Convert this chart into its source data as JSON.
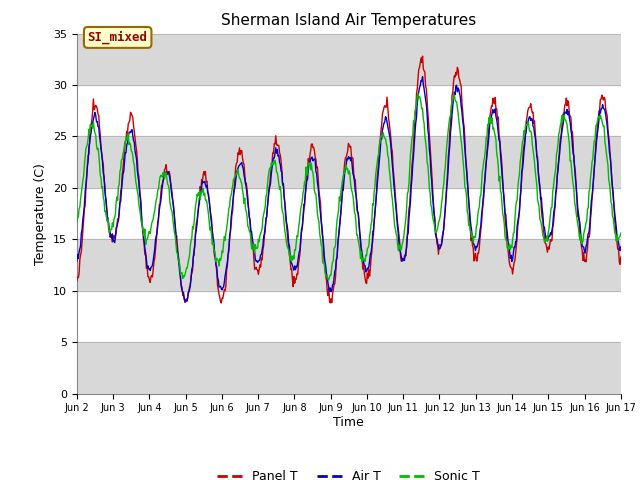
{
  "title": "Sherman Island Air Temperatures",
  "xlabel": "Time",
  "ylabel": "Temperature (C)",
  "ylim": [
    0,
    35
  ],
  "yticks": [
    0,
    5,
    10,
    15,
    20,
    25,
    30,
    35
  ],
  "label_text": "SI_mixed",
  "panel_color": "#cc0000",
  "air_color": "#0000cc",
  "sonic_color": "#00bb00",
  "bg_color": "#ffffff",
  "band_color": "#d8d8d8",
  "legend_labels": [
    "Panel T",
    "Air T",
    "Sonic T"
  ],
  "x_tick_labels": [
    "Jun 2",
    "Jun 3",
    "Jun 4",
    "Jun 5",
    "Jun 6",
    "Jun 7",
    "Jun 8",
    "Jun 9",
    "Jun 10",
    "Jun 11",
    "Jun 12",
    "Jun 13",
    "Jun 14",
    "Jun 15",
    "Jun 16",
    "Jun 17"
  ],
  "n_days": 15,
  "pts_per_day": 48,
  "panel_base": [
    19,
    22,
    18,
    14,
    16,
    18,
    18,
    16,
    18,
    22,
    24,
    21,
    20,
    21,
    21,
    21
  ],
  "panel_amp": [
    8,
    7,
    7,
    5,
    7,
    6,
    7,
    7,
    7,
    9,
    10,
    8,
    8,
    7,
    8,
    8
  ],
  "air_base": [
    20,
    21,
    18,
    14,
    16,
    18,
    18,
    16,
    18,
    21,
    23,
    21,
    20,
    21,
    21,
    21
  ],
  "air_amp": [
    7,
    6,
    6,
    5,
    6,
    5,
    6,
    6,
    6,
    8,
    9,
    7,
    7,
    6,
    7,
    7
  ],
  "sonic_base": [
    21,
    21,
    19,
    15,
    17,
    18,
    18,
    16,
    18,
    21,
    23,
    21,
    20,
    21,
    21,
    21
  ],
  "sonic_amp": [
    5,
    5,
    4,
    4,
    4,
    4,
    5,
    5,
    5,
    7,
    7,
    6,
    6,
    6,
    6,
    6
  ],
  "sonic_phase": 0.08
}
